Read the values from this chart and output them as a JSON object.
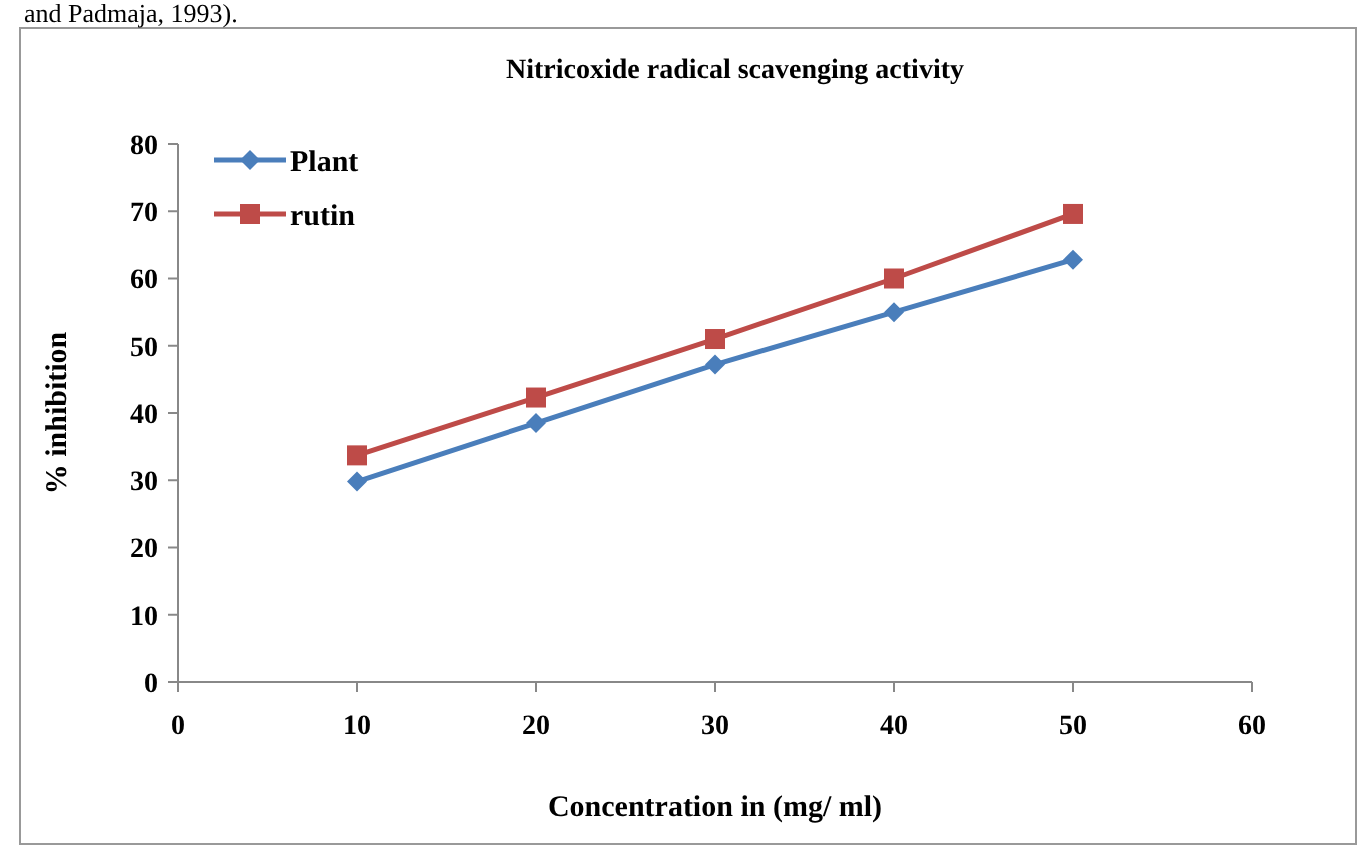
{
  "chart_data": {
    "type": "line",
    "title": "Nitricoxide radical scavenging activity",
    "xlabel": "Concentration in  (mg/ ml)",
    "ylabel": "% inhibition",
    "annotations": [
      "and Padmaja, 1993)."
    ],
    "x": [
      10,
      20,
      30,
      40,
      50
    ],
    "series": [
      {
        "name": "Plant",
        "color": "#4a7ebb",
        "marker": "diamond",
        "values": [
          29.8,
          38.5,
          47.2,
          55,
          62.8
        ]
      },
      {
        "name": "rutin",
        "color": "#be4b48",
        "marker": "square",
        "values": [
          33.7,
          42.3,
          51,
          60,
          69.6
        ]
      }
    ],
    "xlim": [
      0,
      60
    ],
    "xticks": [
      0,
      10,
      20,
      30,
      40,
      50,
      60
    ],
    "ylim": [
      0,
      80
    ],
    "yticks": [
      0,
      10,
      20,
      30,
      40,
      50,
      60,
      70,
      80
    ],
    "grid": false,
    "legend": "top left",
    "line_style": "solid"
  }
}
